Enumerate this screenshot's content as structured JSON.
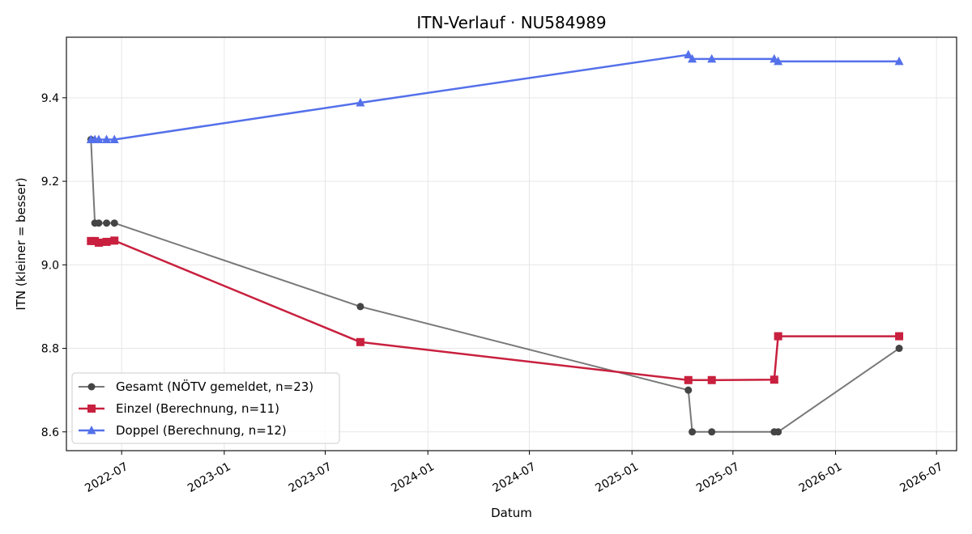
{
  "chart_data": {
    "type": "line",
    "title": "ITN-Verlauf · NU584989",
    "xlabel": "Datum",
    "ylabel": "ITN  (kleiner = besser)",
    "x_type": "date",
    "xlim": [
      "2022-03-24",
      "2026-08-06"
    ],
    "ylim": [
      8.555,
      9.545
    ],
    "x_ticks": [
      "2022-07-01",
      "2023-01-01",
      "2023-07-01",
      "2024-01-01",
      "2024-07-01",
      "2025-01-01",
      "2025-07-01",
      "2026-01-01",
      "2026-07-01"
    ],
    "x_tick_labels": [
      "2022-07",
      "2023-01",
      "2023-07",
      "2024-01",
      "2024-07",
      "2025-01",
      "2025-07",
      "2026-01",
      "2026-07"
    ],
    "y_ticks": [
      8.6,
      8.8,
      9.0,
      9.2,
      9.4
    ],
    "y_tick_labels": [
      "8.6",
      "8.8",
      "9.0",
      "9.2",
      "9.4"
    ],
    "grid": true,
    "legend_position": "lower-left",
    "series": [
      {
        "name": "Gesamt (NÖTV gemeldet, n=23)",
        "color": "#444444",
        "marker": "circle",
        "x": [
          "2022-05-07",
          "2022-05-14",
          "2022-05-21",
          "2022-06-04",
          "2022-06-18",
          "2023-09-02",
          "2025-04-12",
          "2025-04-19",
          "2025-05-24",
          "2025-09-13",
          "2025-09-20",
          "2026-04-25"
        ],
        "y": [
          9.3,
          9.1,
          9.1,
          9.1,
          9.1,
          8.9,
          8.7,
          8.6,
          8.6,
          8.6,
          8.6,
          8.8
        ]
      },
      {
        "name": "Einzel (Berechnung, n=11)",
        "color": "#c8203e",
        "marker": "square",
        "x": [
          "2022-05-07",
          "2022-05-14",
          "2022-05-21",
          "2022-06-04",
          "2022-06-18",
          "2023-09-02",
          "2025-04-12",
          "2025-05-24",
          "2025-09-13",
          "2025-09-20",
          "2026-04-25"
        ],
        "y": [
          9.057,
          9.057,
          9.053,
          9.055,
          9.058,
          8.815,
          8.724,
          8.724,
          8.725,
          8.829,
          8.829
        ]
      },
      {
        "name": "Doppel (Berechnung, n=12)",
        "color": "#5470ea",
        "marker": "triangle",
        "x": [
          "2022-05-07",
          "2022-05-14",
          "2022-05-21",
          "2022-06-04",
          "2022-06-18",
          "2023-09-02",
          "2025-04-12",
          "2025-04-19",
          "2025-05-24",
          "2025-09-13",
          "2025-09-20",
          "2026-04-25"
        ],
        "y": [
          9.3,
          9.3,
          9.3,
          9.3,
          9.3,
          9.388,
          9.503,
          9.493,
          9.493,
          9.493,
          9.487,
          9.487
        ]
      }
    ]
  }
}
